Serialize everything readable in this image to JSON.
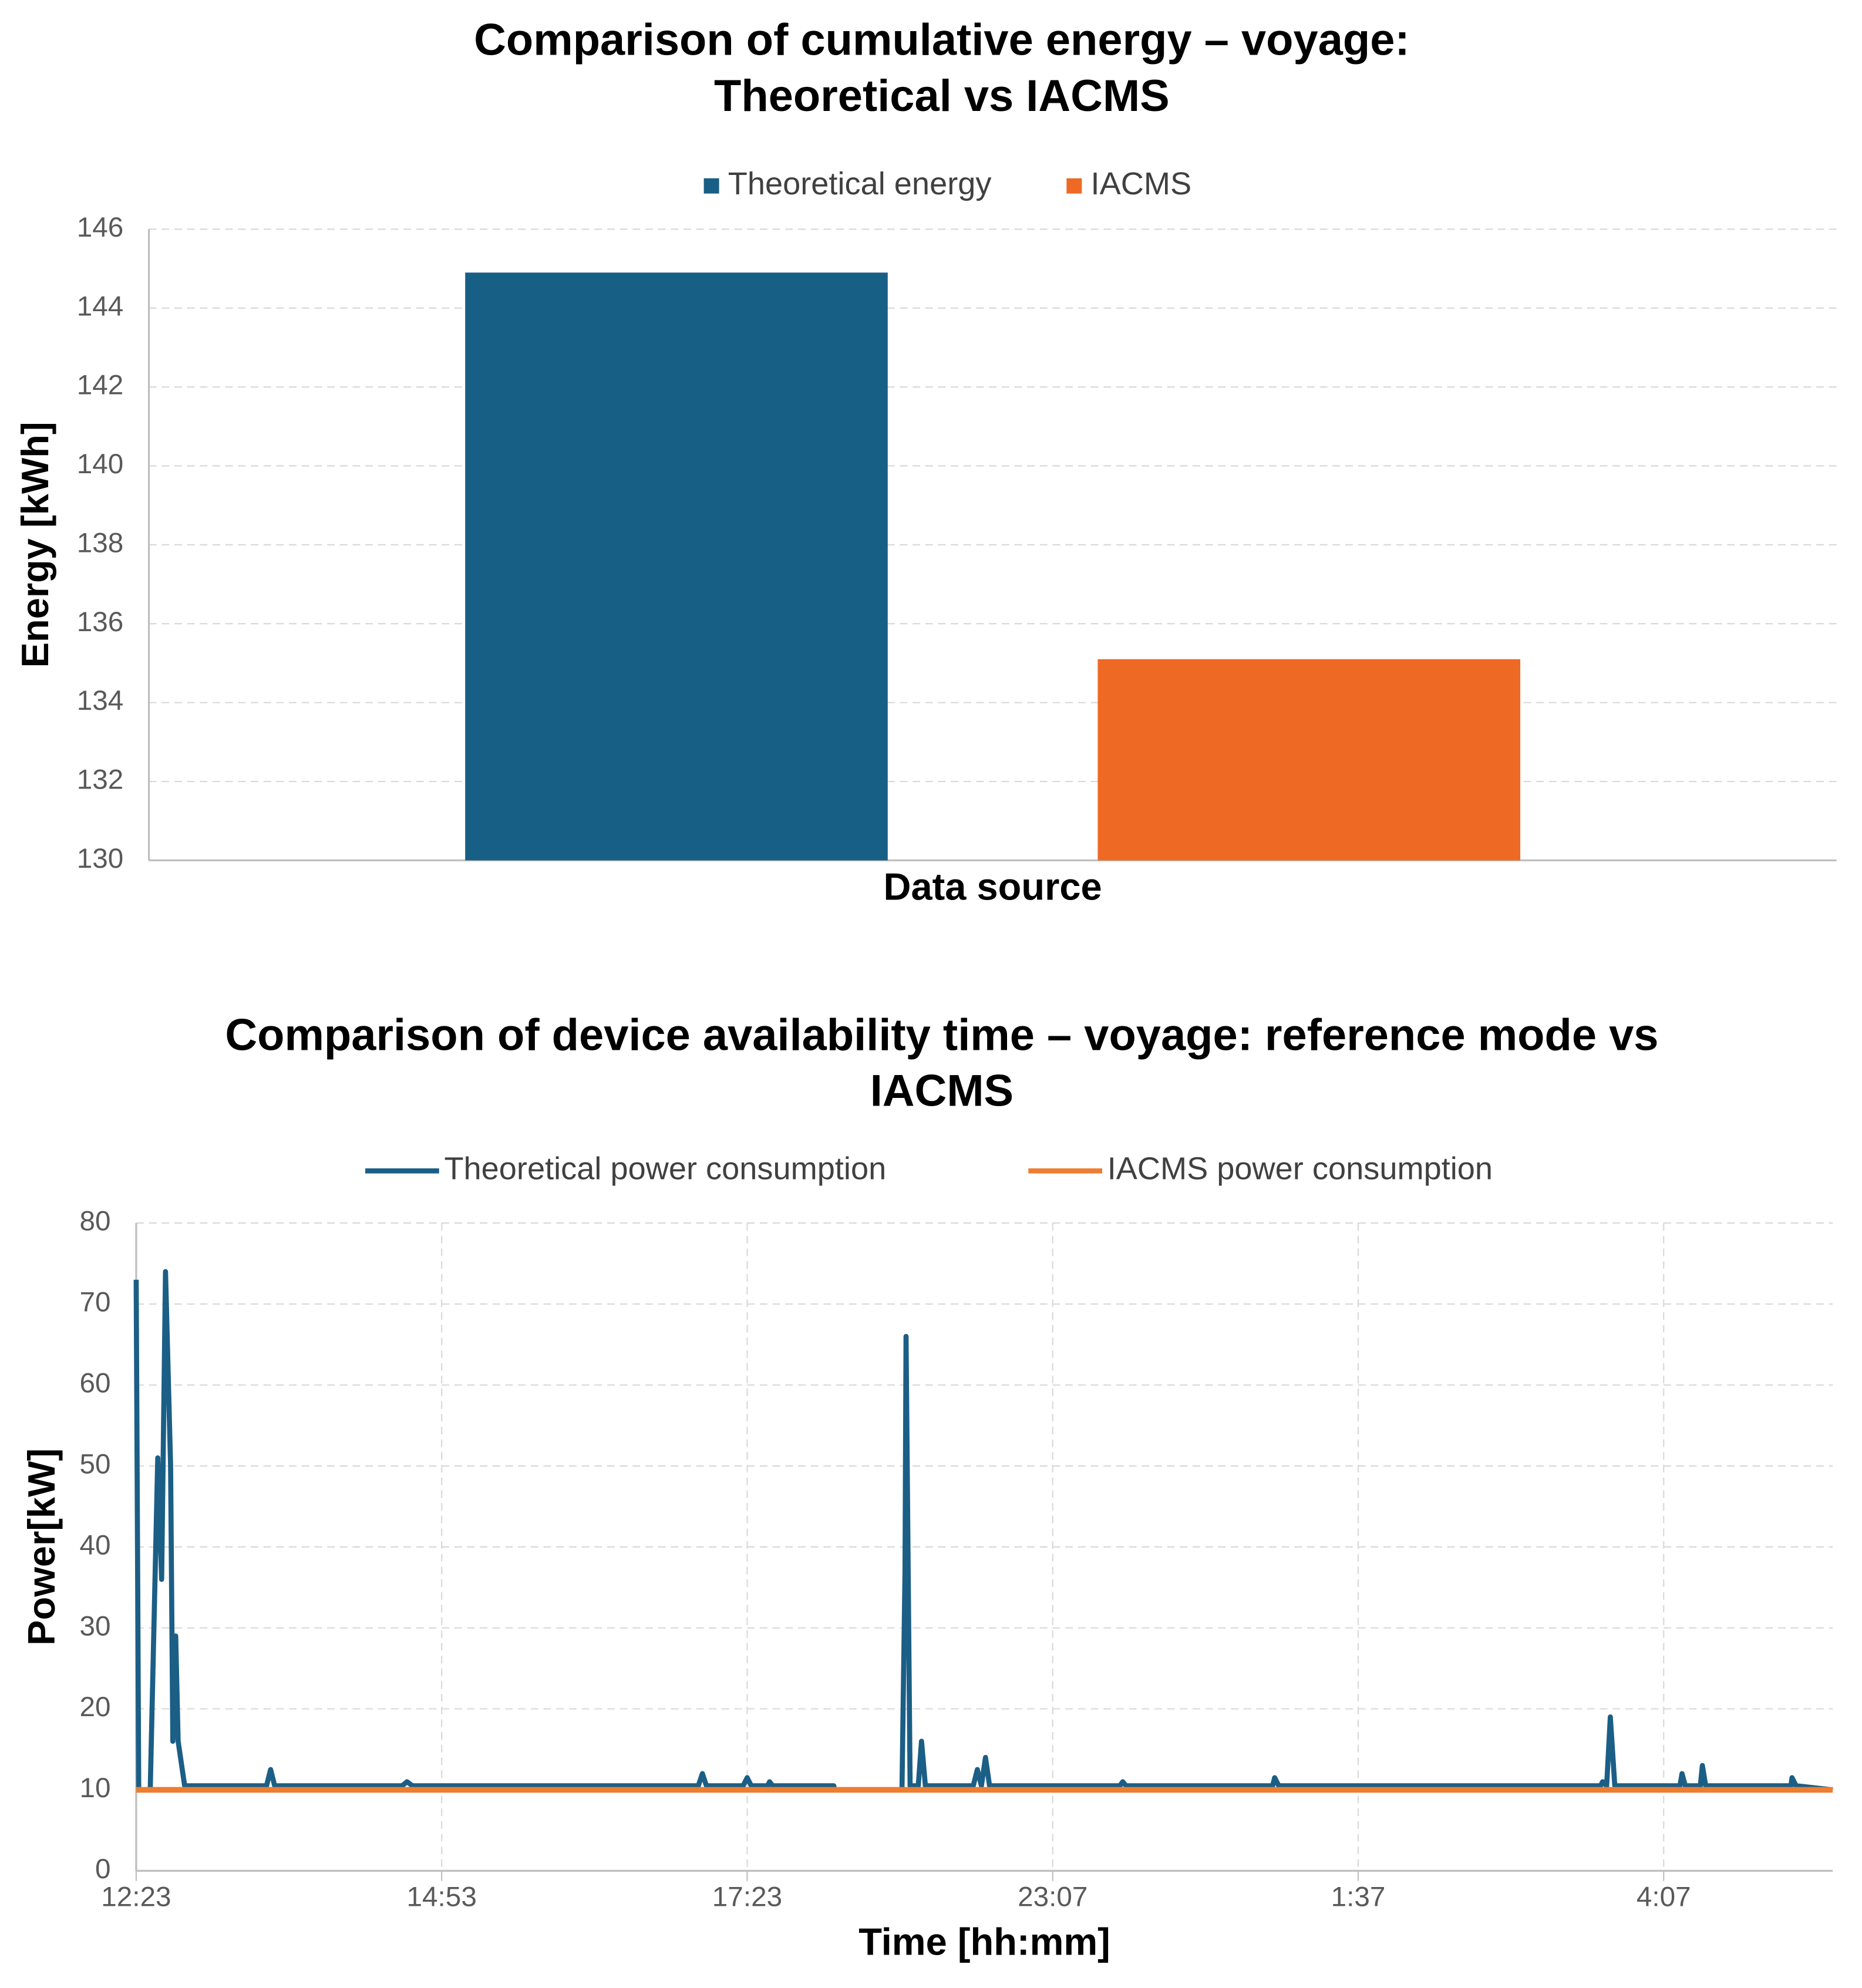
{
  "chart_data": [
    {
      "type": "bar",
      "title": "Comparison of cumulative energy – voyage: Theoretical vs IACMS",
      "x_label": "Data source",
      "y_label": "Energy [kWh]",
      "categories": [
        null
      ],
      "series": [
        {
          "name": "Theoretical energy",
          "color": "#185f85",
          "values": [
            144.9
          ]
        },
        {
          "name": "IACMS",
          "color": "#ee6a24",
          "values": [
            135.1
          ]
        }
      ],
      "ylim": [
        130,
        146
      ],
      "yticks": [
        130,
        132,
        134,
        136,
        138,
        140,
        142,
        144,
        146
      ],
      "grid": true,
      "legend": "top"
    },
    {
      "type": "line",
      "title": "Comparison of device availability time – voyage: reference mode vs IACMS",
      "x_label": "Time [hh:mm]",
      "y_label": "Power[kW]",
      "xlim": [
        0,
        833
      ],
      "xticks": [
        {
          "value": 0,
          "label": "12:23"
        },
        {
          "value": 150,
          "label": "14:53"
        },
        {
          "value": 300,
          "label": "17:23"
        },
        {
          "value": 450,
          "label": "23:07"
        },
        {
          "value": 600,
          "label": "1:37"
        },
        {
          "value": 750,
          "label": "4:07"
        }
      ],
      "ylim": [
        0,
        80
      ],
      "yticks": [
        0,
        10,
        20,
        30,
        40,
        50,
        60,
        70,
        80
      ],
      "grid": true,
      "legend": "top",
      "series": [
        {
          "name": "Theoretical power consumption",
          "color": "#1b5e86",
          "x": [
            0,
            1.25,
            6.9,
            10.6,
            12.5,
            14.4,
            16.9,
            18,
            19.4,
            20.6,
            23.8,
            64,
            66,
            68,
            130.6,
            133,
            135.6,
            276,
            278,
            280,
            298,
            300,
            302,
            310,
            311,
            312.5,
            342.5,
            343,
            376,
            377.5,
            378,
            380,
            384,
            385.6,
            387.5,
            411,
            413,
            415,
            417,
            419,
            483,
            484.4,
            486,
            558,
            559,
            561,
            719,
            720,
            722,
            723.8,
            726,
            758,
            759,
            760.6,
            768,
            769,
            770.6,
            812.5,
            813,
            815,
            833
          ],
          "values": [
            73,
            10,
            10,
            51,
            36,
            74,
            50,
            16,
            29,
            16,
            10.5,
            10.5,
            12.5,
            10.5,
            10.5,
            11,
            10.5,
            10.5,
            12,
            10.5,
            10.5,
            11.5,
            10.5,
            10.5,
            11,
            10.5,
            10.5,
            10,
            10,
            37,
            66,
            10.5,
            10.5,
            16,
            10.5,
            10.5,
            12.5,
            10.5,
            14,
            10.5,
            10.5,
            11,
            10.5,
            10.5,
            11.5,
            10.5,
            10.5,
            11,
            10.5,
            19,
            10.5,
            10.5,
            12,
            10.5,
            10.5,
            13,
            10.5,
            10.5,
            11.5,
            10.5,
            10
          ]
        },
        {
          "name": "IACMS power consumption",
          "color": "#ed7d31",
          "x": [
            0,
            833
          ],
          "values": [
            10,
            10
          ]
        }
      ]
    }
  ]
}
